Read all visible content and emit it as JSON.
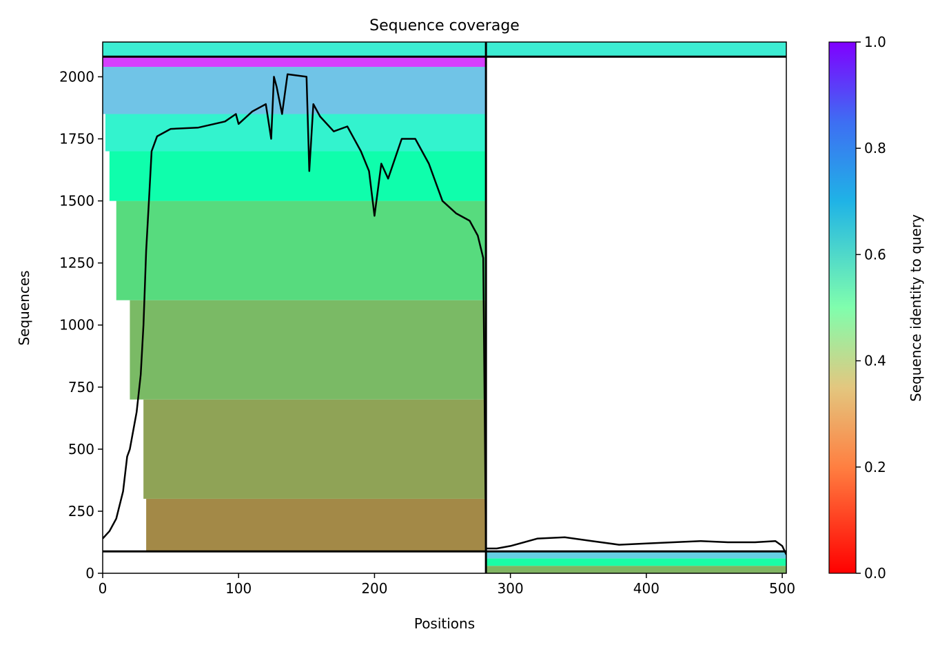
{
  "chart_data": {
    "type": "heatmap",
    "title": "Sequence coverage",
    "xlabel": "Positions",
    "ylabel": "Sequences",
    "xlim": [
      0,
      503
    ],
    "ylim": [
      0,
      2140
    ],
    "x_ticks": [
      0,
      100,
      200,
      300,
      400,
      500
    ],
    "y_ticks": [
      0,
      250,
      500,
      750,
      1000,
      1250,
      1500,
      1750,
      2000
    ],
    "colorbar": {
      "label": "Sequence identity to query",
      "range": [
        0,
        1
      ],
      "ticks": [
        "0.0",
        "0.2",
        "0.4",
        "0.6",
        "0.8",
        "1.0"
      ],
      "colormap": "rainbow_r",
      "colors": [
        "#ff0000",
        "#ff7f41",
        "#e3c77f",
        "#80fead",
        "#1fb3e6",
        "#8000ff"
      ]
    },
    "chain_boundaries": {
      "x": 282,
      "y": [
        88,
        2081
      ]
    },
    "coverage_line": {
      "color": "#000000",
      "x": [
        0,
        5,
        10,
        15,
        18,
        20,
        25,
        28,
        30,
        32,
        34,
        36,
        40,
        50,
        70,
        90,
        98,
        100,
        110,
        120,
        124,
        126,
        128,
        132,
        136,
        150,
        152,
        155,
        160,
        170,
        180,
        190,
        196,
        200,
        205,
        210,
        220,
        230,
        240,
        250,
        260,
        270,
        276,
        280,
        282,
        290,
        300,
        320,
        340,
        360,
        380,
        400,
        420,
        440,
        460,
        480,
        495,
        500,
        503
      ],
      "y": [
        140,
        170,
        220,
        330,
        470,
        500,
        650,
        800,
        1000,
        1300,
        1500,
        1700,
        1760,
        1790,
        1795,
        1820,
        1850,
        1810,
        1860,
        1890,
        1750,
        2000,
        1960,
        1850,
        2010,
        2000,
        1620,
        1890,
        1840,
        1780,
        1800,
        1700,
        1620,
        1440,
        1650,
        1590,
        1750,
        1750,
        1650,
        1500,
        1450,
        1420,
        1360,
        1270,
        100,
        100,
        110,
        140,
        145,
        130,
        115,
        120,
        125,
        130,
        125,
        125,
        130,
        110,
        75
      ]
    },
    "coverage_bands": [
      {
        "x0": 32,
        "x1": 282,
        "y0": 88,
        "y1": 300,
        "identity": 0.18
      },
      {
        "x0": 30,
        "x1": 282,
        "y0": 300,
        "y1": 700,
        "identity": 0.22
      },
      {
        "x0": 20,
        "x1": 282,
        "y0": 700,
        "y1": 1100,
        "identity": 0.26
      },
      {
        "x0": 10,
        "x1": 282,
        "y0": 1100,
        "y1": 1500,
        "identity": 0.33
      },
      {
        "x0": 5,
        "x1": 282,
        "y0": 1500,
        "y1": 1700,
        "identity": 0.47
      },
      {
        "x0": 2,
        "x1": 282,
        "y0": 1700,
        "y1": 1850,
        "identity": 0.6
      },
      {
        "x0": 0,
        "x1": 282,
        "y0": 1850,
        "y1": 2040,
        "identity": 0.72
      },
      {
        "x0": 0,
        "x1": 282,
        "y0": 2040,
        "y1": 2081,
        "identity": 0.92
      },
      {
        "x0": 0,
        "x1": 503,
        "y0": 2081,
        "y1": 2140,
        "identity": 0.62
      },
      {
        "x0": 282,
        "x1": 503,
        "y0": 0,
        "y1": 30,
        "identity": 0.25
      },
      {
        "x0": 282,
        "x1": 503,
        "y0": 30,
        "y1": 60,
        "identity": 0.45
      },
      {
        "x0": 282,
        "x1": 503,
        "y0": 60,
        "y1": 88,
        "identity": 0.7
      }
    ]
  }
}
